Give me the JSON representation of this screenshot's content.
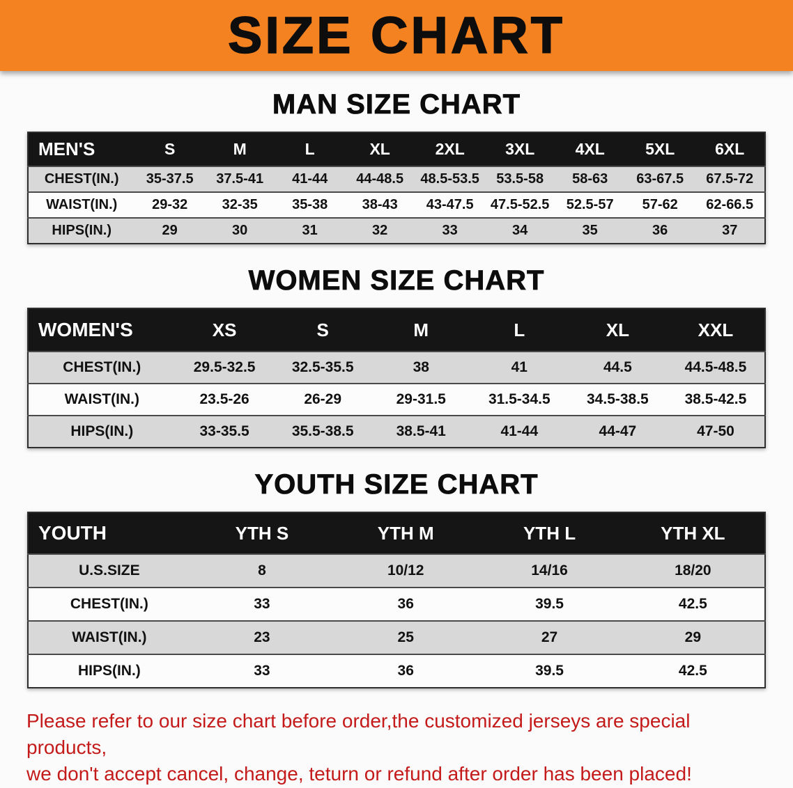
{
  "banner": {
    "title": "SIZE CHART"
  },
  "colors": {
    "banner_bg": "#f58220",
    "header_bg": "#151515",
    "header_text": "#ffffff",
    "row_alt": "#d8d8d8",
    "notice_red": "#c41a1a",
    "text": "#111111"
  },
  "sections": [
    {
      "id": "mens",
      "heading": "MAN SIZE CHART",
      "table": {
        "header": [
          "MEN'S",
          "S",
          "M",
          "L",
          "XL",
          "2XL",
          "3XL",
          "4XL",
          "5XL",
          "6XL"
        ],
        "rows": [
          [
            "CHEST(IN.)",
            "35-37.5",
            "37.5-41",
            "41-44",
            "44-48.5",
            "48.5-53.5",
            "53.5-58",
            "58-63",
            "63-67.5",
            "67.5-72"
          ],
          [
            "WAIST(IN.)",
            "29-32",
            "32-35",
            "35-38",
            "38-43",
            "43-47.5",
            "47.5-52.5",
            "52.5-57",
            "57-62",
            "62-66.5"
          ],
          [
            "HIPS(IN.)",
            "29",
            "30",
            "31",
            "32",
            "33",
            "34",
            "35",
            "36",
            "37"
          ]
        ]
      }
    },
    {
      "id": "womens",
      "heading": "WOMEN SIZE CHART",
      "table": {
        "header": [
          "WOMEN'S",
          "XS",
          "S",
          "M",
          "L",
          "XL",
          "XXL"
        ],
        "rows": [
          [
            "CHEST(IN.)",
            "29.5-32.5",
            "32.5-35.5",
            "38",
            "41",
            "44.5",
            "44.5-48.5"
          ],
          [
            "WAIST(IN.)",
            "23.5-26",
            "26-29",
            "29-31.5",
            "31.5-34.5",
            "34.5-38.5",
            "38.5-42.5"
          ],
          [
            "HIPS(IN.)",
            "33-35.5",
            "35.5-38.5",
            "38.5-41",
            "41-44",
            "44-47",
            "47-50"
          ]
        ]
      }
    },
    {
      "id": "youth",
      "heading": "YOUTH SIZE CHART",
      "table": {
        "header": [
          "YOUTH",
          "YTH S",
          "YTH M",
          "YTH L",
          "YTH XL"
        ],
        "rows": [
          [
            "U.S.SIZE",
            "8",
            "10/12",
            "14/16",
            "18/20"
          ],
          [
            "CHEST(IN.)",
            "33",
            "36",
            "39.5",
            "42.5"
          ],
          [
            "WAIST(IN.)",
            "23",
            "25",
            "27",
            "29"
          ],
          [
            "HIPS(IN.)",
            "33",
            "36",
            "39.5",
            "42.5"
          ]
        ]
      }
    }
  ],
  "footer": {
    "lines": [
      "Please refer to our size chart before order,the customized jerseys are special products,",
      "we don't accept cancel, change, teturn or refund after order has been placed!"
    ]
  }
}
